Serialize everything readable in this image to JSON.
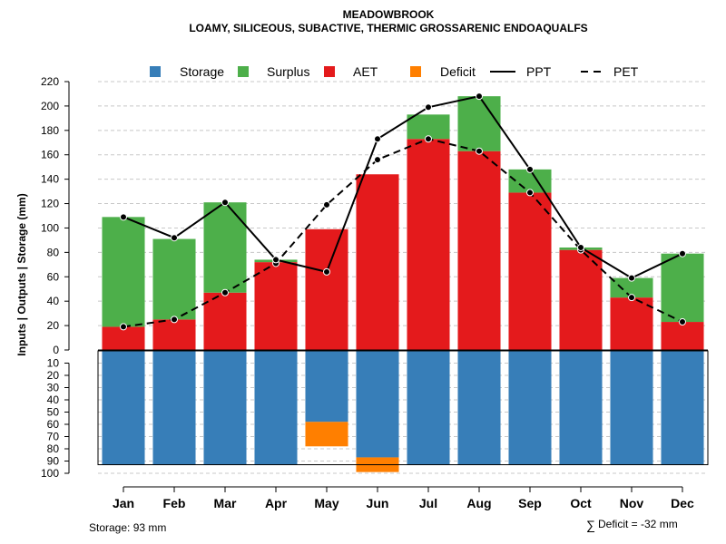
{
  "chart_data": {
    "type": "bar",
    "title": "MEADOWBROOK",
    "subtitle": "LOAMY, SILICEOUS, SUBACTIVE, THERMIC GROSSARENIC ENDOAQUALFS",
    "ylabel": "Inputs | Outputs | Storage    (mm)",
    "categories": [
      "Jan",
      "Feb",
      "Mar",
      "Apr",
      "May",
      "Jun",
      "Jul",
      "Aug",
      "Sep",
      "Oct",
      "Nov",
      "Dec"
    ],
    "ylim_top": [
      0,
      220
    ],
    "ylim_bottom": [
      0,
      100
    ],
    "yticks_top": [
      0,
      20,
      40,
      60,
      80,
      100,
      120,
      140,
      160,
      180,
      200,
      220
    ],
    "yticks_bottom": [
      10,
      20,
      30,
      40,
      50,
      60,
      70,
      80,
      90,
      100
    ],
    "series": [
      {
        "name": "Storage",
        "color": "#377EB8",
        "values": [
          93,
          93,
          93,
          93,
          58,
          87,
          93,
          93,
          93,
          93,
          93,
          93
        ]
      },
      {
        "name": "Surplus",
        "color": "#4DAF4A",
        "values": [
          90,
          66,
          74,
          2,
          0,
          0,
          20,
          45,
          19,
          2,
          16,
          56
        ]
      },
      {
        "name": "AET",
        "color": "#E41A1C",
        "values": [
          19,
          25,
          47,
          72,
          99,
          144,
          173,
          163,
          129,
          82,
          43,
          23
        ]
      },
      {
        "name": "Deficit",
        "color": "#FF7F00",
        "values": [
          0,
          0,
          0,
          0,
          20,
          12,
          0,
          0,
          0,
          0,
          0,
          0
        ]
      },
      {
        "name": "PPT",
        "color": "#000000",
        "values": [
          109,
          92,
          121,
          74,
          64,
          173,
          199,
          208,
          148,
          84,
          59,
          79
        ]
      },
      {
        "name": "PET",
        "color": "#000000",
        "values": [
          19,
          25,
          47,
          71,
          119,
          156,
          173,
          163,
          129,
          82,
          43,
          23
        ]
      }
    ],
    "storage_capacity": 93,
    "grid": true,
    "legend_position": "top"
  },
  "footer": {
    "storage_note": "Storage: 93 mm",
    "deficit_symbol": "∑",
    "deficit_note": "Deficit = -32 mm"
  }
}
